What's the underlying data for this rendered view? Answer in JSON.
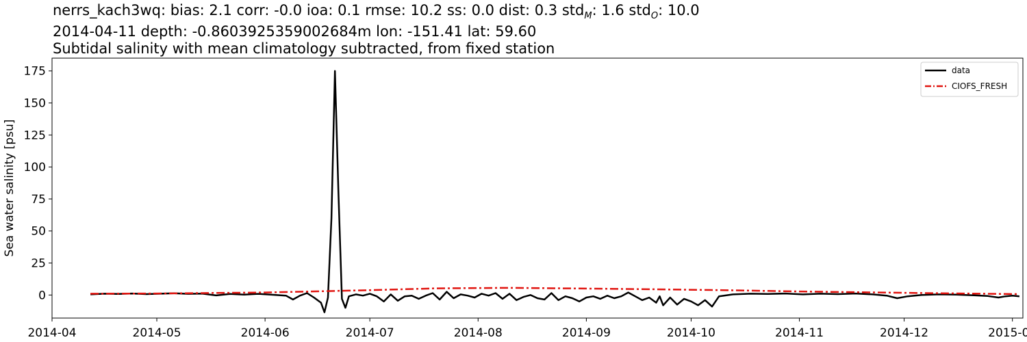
{
  "chart_data": {
    "type": "line",
    "title": "nerrs_kach3wq: bias: 2.1  corr: -0.0  ioa: 0.1  rmse: 10.2  ss: 0.0  dist: 0.3  std",
    "title_stats": {
      "std_M_label": "M",
      "std_M_value": ": 1.6  std",
      "std_O_label": "O",
      "std_O_value": ": 10.0"
    },
    "subtitle": "2014-04-11 depth: -0.8603925359002684m lon: -151.41 lat: 59.60",
    "subtitle2": "Subtidal salinity with mean climatology subtracted, from fixed station",
    "ylabel": "Sea water salinity [psu]",
    "xlabel": "",
    "xlim": [
      "2014-04-01",
      "2015-01-04"
    ],
    "ylim": [
      -18,
      185
    ],
    "x_ticks": [
      "2014-04",
      "2014-05",
      "2014-06",
      "2014-07",
      "2014-08",
      "2014-09",
      "2014-10",
      "2014-11",
      "2014-12",
      "2015-01"
    ],
    "y_ticks": [
      0,
      25,
      50,
      75,
      100,
      125,
      150,
      175
    ],
    "grid": false,
    "legend_position": "top-right",
    "series": [
      {
        "name": "data",
        "color": "#000000",
        "style": "solid",
        "points": [
          [
            "2014-04-12",
            0.5
          ],
          [
            "2014-04-16",
            1.0
          ],
          [
            "2014-04-20",
            0.8
          ],
          [
            "2014-04-24",
            1.2
          ],
          [
            "2014-04-28",
            0.7
          ],
          [
            "2014-05-02",
            1.0
          ],
          [
            "2014-05-06",
            1.4
          ],
          [
            "2014-05-10",
            0.9
          ],
          [
            "2014-05-14",
            1.1
          ],
          [
            "2014-05-18",
            -0.3
          ],
          [
            "2014-05-22",
            0.8
          ],
          [
            "2014-05-26",
            0.3
          ],
          [
            "2014-05-30",
            0.9
          ],
          [
            "2014-06-03",
            0.2
          ],
          [
            "2014-06-07",
            -0.5
          ],
          [
            "2014-06-09",
            -3.5
          ],
          [
            "2014-06-11",
            -0.5
          ],
          [
            "2014-06-13",
            1.5
          ],
          [
            "2014-06-15",
            -2.0
          ],
          [
            "2014-06-17",
            -6.0
          ],
          [
            "2014-06-18",
            -13.5
          ],
          [
            "2014-06-19",
            -2.0
          ],
          [
            "2014-06-20",
            60.0
          ],
          [
            "2014-06-21",
            175.0
          ],
          [
            "2014-06-22",
            80.0
          ],
          [
            "2014-06-23",
            -3.0
          ],
          [
            "2014-06-24",
            -10.0
          ],
          [
            "2014-06-25",
            -1.0
          ],
          [
            "2014-06-27",
            0.5
          ],
          [
            "2014-06-29",
            -0.5
          ],
          [
            "2014-07-01",
            1.0
          ],
          [
            "2014-07-03",
            -1.0
          ],
          [
            "2014-07-05",
            -5.0
          ],
          [
            "2014-07-07",
            0.5
          ],
          [
            "2014-07-09",
            -4.5
          ],
          [
            "2014-07-11",
            -1.0
          ],
          [
            "2014-07-13",
            -0.5
          ],
          [
            "2014-07-15",
            -3.0
          ],
          [
            "2014-07-17",
            -0.5
          ],
          [
            "2014-07-19",
            1.5
          ],
          [
            "2014-07-21",
            -3.5
          ],
          [
            "2014-07-23",
            2.5
          ],
          [
            "2014-07-25",
            -2.5
          ],
          [
            "2014-07-27",
            0.5
          ],
          [
            "2014-07-29",
            -0.5
          ],
          [
            "2014-07-31",
            -2.0
          ],
          [
            "2014-08-02",
            1.0
          ],
          [
            "2014-08-04",
            -0.5
          ],
          [
            "2014-08-06",
            1.5
          ],
          [
            "2014-08-08",
            -3.0
          ],
          [
            "2014-08-10",
            1.0
          ],
          [
            "2014-08-12",
            -4.0
          ],
          [
            "2014-08-14",
            -1.5
          ],
          [
            "2014-08-16",
            0.0
          ],
          [
            "2014-08-18",
            -2.5
          ],
          [
            "2014-08-20",
            -3.5
          ],
          [
            "2014-08-22",
            1.5
          ],
          [
            "2014-08-24",
            -4.0
          ],
          [
            "2014-08-26",
            -1.0
          ],
          [
            "2014-08-28",
            -2.5
          ],
          [
            "2014-08-30",
            -5.0
          ],
          [
            "2014-09-01",
            -2.0
          ],
          [
            "2014-09-03",
            -1.0
          ],
          [
            "2014-09-05",
            -3.0
          ],
          [
            "2014-09-07",
            -0.5
          ],
          [
            "2014-09-09",
            -2.5
          ],
          [
            "2014-09-11",
            -1.0
          ],
          [
            "2014-09-13",
            2.0
          ],
          [
            "2014-09-15",
            -1.0
          ],
          [
            "2014-09-17",
            -4.0
          ],
          [
            "2014-09-19",
            -2.0
          ],
          [
            "2014-09-21",
            -6.0
          ],
          [
            "2014-09-22",
            -1.0
          ],
          [
            "2014-09-23",
            -8.0
          ],
          [
            "2014-09-25",
            -2.0
          ],
          [
            "2014-09-27",
            -7.5
          ],
          [
            "2014-09-29",
            -3.0
          ],
          [
            "2014-10-01",
            -5.0
          ],
          [
            "2014-10-03",
            -8.0
          ],
          [
            "2014-10-05",
            -4.0
          ],
          [
            "2014-10-07",
            -9.0
          ],
          [
            "2014-10-09",
            -1.0
          ],
          [
            "2014-10-13",
            0.5
          ],
          [
            "2014-10-18",
            1.0
          ],
          [
            "2014-10-23",
            0.8
          ],
          [
            "2014-10-28",
            1.2
          ],
          [
            "2014-11-02",
            0.5
          ],
          [
            "2014-11-07",
            1.0
          ],
          [
            "2014-11-12",
            0.7
          ],
          [
            "2014-11-17",
            1.2
          ],
          [
            "2014-11-22",
            0.5
          ],
          [
            "2014-11-26",
            -0.5
          ],
          [
            "2014-11-29",
            -2.5
          ],
          [
            "2014-12-02",
            -1.0
          ],
          [
            "2014-12-06",
            0.0
          ],
          [
            "2014-12-11",
            0.5
          ],
          [
            "2014-12-16",
            0.3
          ],
          [
            "2014-12-21",
            -0.2
          ],
          [
            "2014-12-25",
            -0.8
          ],
          [
            "2014-12-28",
            -2.0
          ],
          [
            "2014-12-30",
            -1.0
          ],
          [
            "2015-01-01",
            -0.5
          ],
          [
            "2015-01-03",
            -1.0
          ]
        ]
      },
      {
        "name": "CIOFS_FRESH",
        "color": "#e0130e",
        "style": "dashdot",
        "points": [
          [
            "2014-04-12",
            1.0
          ],
          [
            "2014-05-01",
            1.2
          ],
          [
            "2014-06-01",
            2.0
          ],
          [
            "2014-07-01",
            3.8
          ],
          [
            "2014-07-20",
            5.2
          ],
          [
            "2014-08-10",
            5.6
          ],
          [
            "2014-09-01",
            5.0
          ],
          [
            "2014-09-20",
            4.5
          ],
          [
            "2014-10-10",
            3.8
          ],
          [
            "2014-11-01",
            2.8
          ],
          [
            "2014-12-01",
            1.7
          ],
          [
            "2015-01-03",
            0.7
          ]
        ]
      }
    ]
  }
}
